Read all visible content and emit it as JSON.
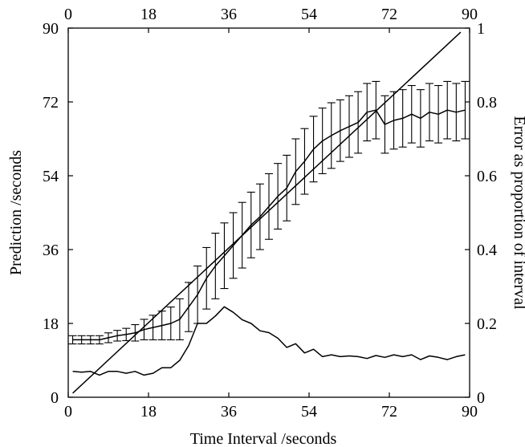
{
  "chart_data": {
    "type": "line",
    "title": "",
    "xlabel": "Time Interval /seconds",
    "ylabel": "Prediction /seconds",
    "y2label": "Error as proportion of interval",
    "xlim": [
      0,
      90
    ],
    "ylim": [
      0,
      90
    ],
    "y2lim": [
      0,
      1
    ],
    "x_ticks": [
      "0",
      "18",
      "36",
      "54",
      "72",
      "90"
    ],
    "y_ticks": [
      "0",
      "18",
      "36",
      "54",
      "72",
      "90"
    ],
    "y2_ticks": [
      "0",
      "0.2",
      "0.4",
      "0.6",
      "0.8",
      "1"
    ],
    "top_ticks": [
      "0",
      "18",
      "36",
      "54",
      "72",
      "90"
    ],
    "grid": false,
    "legend": "none",
    "series": [
      {
        "axis": "left",
        "style": "line",
        "x": [
          1,
          88
        ],
        "y": [
          1,
          89
        ]
      },
      {
        "axis": "left",
        "style": "line-with-errorbars",
        "x": [
          1,
          3,
          5,
          7,
          9,
          11,
          13,
          15,
          17,
          19,
          21,
          23,
          25,
          27,
          29,
          31,
          33,
          35,
          37,
          39,
          41,
          43,
          45,
          47,
          49,
          51,
          53,
          55,
          57,
          59,
          61,
          63,
          65,
          67,
          69,
          71,
          73,
          75,
          77,
          79,
          81,
          83,
          85,
          87,
          89
        ],
        "y": [
          14,
          14,
          14,
          14,
          14.5,
          15,
          15.3,
          15.7,
          16.5,
          17,
          17.5,
          18,
          19,
          22,
          25,
          29,
          32,
          34.5,
          37,
          39.5,
          42,
          44,
          46.5,
          49,
          51,
          55,
          57.5,
          60.5,
          62.5,
          63.8,
          65,
          66,
          67,
          69.5,
          70,
          66.5,
          67.5,
          68,
          69,
          68,
          69.5,
          69,
          70,
          69.5,
          70
        ],
        "err": [
          1,
          1,
          1,
          1,
          1.2,
          1.3,
          1.5,
          2,
          2.5,
          3,
          3.5,
          4,
          5,
          6,
          7,
          7.5,
          8,
          8,
          8,
          8,
          8,
          8,
          8,
          8,
          8,
          8,
          8,
          8,
          8,
          8,
          7.5,
          7.5,
          7.5,
          7,
          7,
          7,
          7,
          7,
          7,
          7,
          7,
          7,
          7,
          7,
          7
        ]
      },
      {
        "axis": "right",
        "style": "line",
        "x": [
          1,
          3,
          5,
          7,
          9,
          11,
          13,
          15,
          17,
          19,
          21,
          23,
          25,
          27,
          29,
          31,
          33,
          35,
          37,
          39,
          41,
          43,
          45,
          47,
          49,
          51,
          53,
          55,
          57,
          59,
          61,
          63,
          65,
          67,
          69,
          71,
          73,
          75,
          77,
          79,
          81,
          83,
          85,
          87,
          89
        ],
        "y": [
          0.07,
          0.068,
          0.07,
          0.06,
          0.07,
          0.07,
          0.065,
          0.07,
          0.06,
          0.065,
          0.08,
          0.08,
          0.1,
          0.14,
          0.2,
          0.2,
          0.22,
          0.245,
          0.23,
          0.21,
          0.2,
          0.18,
          0.175,
          0.16,
          0.135,
          0.145,
          0.12,
          0.13,
          0.11,
          0.115,
          0.11,
          0.112,
          0.11,
          0.105,
          0.113,
          0.108,
          0.115,
          0.11,
          0.115,
          0.102,
          0.112,
          0.108,
          0.102,
          0.11,
          0.115
        ]
      }
    ]
  }
}
